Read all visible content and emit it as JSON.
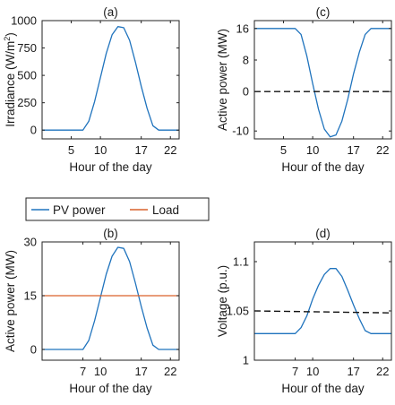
{
  "colors": {
    "pv": "#1f73bd",
    "load": "#d9622b",
    "ref": "#111111",
    "axis": "#222222"
  },
  "legend": {
    "pv_label": "PV power",
    "load_label": "Load"
  },
  "chart_data": [
    {
      "panel": "a",
      "title": "(a)",
      "type": "line",
      "xlabel": "Hour of the day",
      "ylabel": "Irradiance (W/m",
      "ylabel_sup": "2",
      "ylabel_end": ")",
      "xlim": [
        0,
        23.5
      ],
      "ylim": [
        -80,
        1000
      ],
      "xticks": [
        5,
        10,
        17,
        22
      ],
      "yticks": [
        0,
        250,
        500,
        750,
        1000
      ],
      "series": [
        {
          "key": "pv",
          "x": [
            0,
            7,
            8,
            9,
            10,
            11,
            12,
            13,
            14,
            15,
            16,
            17,
            18,
            19,
            20,
            21,
            23.5
          ],
          "y": [
            0,
            0,
            80,
            260,
            480,
            700,
            870,
            945,
            935,
            820,
            620,
            400,
            200,
            40,
            0,
            0,
            0
          ]
        }
      ]
    },
    {
      "panel": "b",
      "title": "(b)",
      "type": "line",
      "xlabel": "Hour of the day",
      "ylabel": "Active power (MW)",
      "xlim": [
        0,
        23.5
      ],
      "ylim": [
        -3,
        30
      ],
      "xticks": [
        7,
        10,
        17,
        22
      ],
      "yticks": [
        0,
        15,
        30
      ],
      "series": [
        {
          "key": "pv",
          "x": [
            0,
            7,
            8,
            9,
            10,
            11,
            12,
            13,
            14,
            15,
            16,
            17,
            18,
            19,
            20,
            21,
            23.5
          ],
          "y": [
            0,
            0,
            2.5,
            8,
            14.5,
            21,
            26,
            28.5,
            28.2,
            24.5,
            18.5,
            12,
            6,
            1.2,
            0,
            0,
            0
          ]
        },
        {
          "key": "load",
          "x": [
            0,
            23.5
          ],
          "y": [
            15,
            15
          ]
        }
      ]
    },
    {
      "panel": "c",
      "title": "(c)",
      "type": "line",
      "xlabel": "Hour of the day",
      "ylabel": "Active power (MW)",
      "xlim": [
        0,
        23.5
      ],
      "ylim": [
        -12,
        18
      ],
      "xticks": [
        5,
        10,
        17,
        22
      ],
      "yticks": [
        -10,
        0,
        8,
        16
      ],
      "series": [
        {
          "key": "pv",
          "x": [
            0,
            7,
            8,
            9,
            10,
            11,
            12,
            13,
            14,
            15,
            16,
            17,
            18,
            19,
            20,
            21,
            23.5
          ],
          "y": [
            16,
            16,
            14.5,
            9,
            2,
            -4.5,
            -9.5,
            -11.5,
            -11,
            -7.5,
            -2,
            4.5,
            10,
            14.5,
            16,
            16,
            16
          ]
        },
        {
          "key": "ref",
          "dashed": true,
          "x": [
            0,
            23.5
          ],
          "y": [
            0,
            0
          ]
        }
      ]
    },
    {
      "panel": "d",
      "title": "(d)",
      "type": "line",
      "xlabel": "Hour of the day",
      "ylabel": "Voltage (p.u.)",
      "xlim": [
        0,
        23.5
      ],
      "ylim": [
        1.0,
        1.12
      ],
      "xticks": [
        7,
        10,
        17,
        22
      ],
      "yticks": [
        1,
        1.05,
        1.1
      ],
      "ytick_labels": [
        "1",
        "1.05",
        "1.1"
      ],
      "series": [
        {
          "key": "pv",
          "x": [
            0,
            7,
            8,
            9,
            10,
            11,
            12,
            13,
            14,
            15,
            16,
            17,
            18,
            19,
            20,
            21,
            23.5
          ],
          "y": [
            1.027,
            1.027,
            1.033,
            1.045,
            1.062,
            1.076,
            1.087,
            1.093,
            1.093,
            1.085,
            1.071,
            1.056,
            1.042,
            1.03,
            1.027,
            1.027,
            1.027
          ]
        },
        {
          "key": "ref",
          "dashed": true,
          "x": [
            0,
            23.5
          ],
          "y": [
            1.05,
            1.048
          ]
        }
      ]
    }
  ]
}
